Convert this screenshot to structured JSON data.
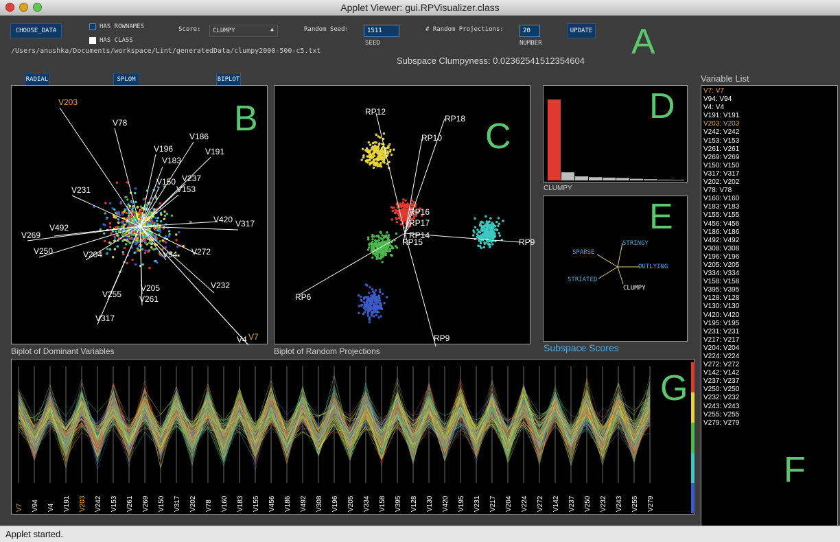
{
  "window": {
    "title": "Applet Viewer: gui.RPVisualizer.class",
    "status": "Applet started."
  },
  "toolbar": {
    "choose_data": "CHOOSE_DATA",
    "has_rownames": "HAS ROWNAMES",
    "has_class": "HAS CLASS",
    "score_label": "Score:",
    "score_value": "CLUMPY",
    "random_seed_label": "Random Seed:",
    "seed_value": "1511",
    "seed_caption": "SEED",
    "projections_label": "# Random Projections:",
    "number_value": "20",
    "number_caption": "NUMBER",
    "update": "UPDATE",
    "file_path": "/Users/anushka/Documents/workspace/Lint/generatedData/clumpy2000-500-c5.txt"
  },
  "clumpyness": "Subspace Clumpyness: 0.02362541512354604",
  "tabs": {
    "radial": "RADIAL",
    "splom": "SPLOM",
    "biplot": "BIPLOT"
  },
  "region_letters": {
    "a": "A",
    "b": "B",
    "c": "C",
    "d": "D",
    "e": "E",
    "f": "F",
    "g": "G"
  },
  "colors": {
    "yellow": "#e6d23a",
    "red": "#e03a2e",
    "green": "#4bb84b",
    "blue": "#3b5bc8",
    "cyan": "#3cc8c0",
    "orange": "#f0a830",
    "accent_green": "#5cc86e"
  },
  "biplot_dominant": {
    "caption": "Biplot of Dominant Variables",
    "labels": [
      {
        "text": "V203",
        "color": "#f0a830"
      },
      {
        "text": "V78"
      },
      {
        "text": "V186"
      },
      {
        "text": "V191"
      },
      {
        "text": "V196"
      },
      {
        "text": "V183"
      },
      {
        "text": "V237"
      },
      {
        "text": "V150"
      },
      {
        "text": "V153"
      },
      {
        "text": "V231"
      },
      {
        "text": "V420"
      },
      {
        "text": "V317"
      },
      {
        "text": "V269"
      },
      {
        "text": "V492"
      },
      {
        "text": "V250"
      },
      {
        "text": "V204"
      },
      {
        "text": "V94"
      },
      {
        "text": "V272"
      },
      {
        "text": "V255"
      },
      {
        "text": "V205"
      },
      {
        "text": "V261"
      },
      {
        "text": "V232"
      },
      {
        "text": "V317"
      },
      {
        "text": "V4"
      },
      {
        "text": "V7",
        "color": "#f0a830"
      }
    ]
  },
  "biplot_rp": {
    "caption": "Biplot of Random Projections",
    "labels": [
      "RP12",
      "RP18",
      "RP10",
      "RP16",
      "RP17",
      "RP14",
      "RP15",
      "RP6",
      "RP9",
      "RP9"
    ]
  },
  "scores_panel": {
    "selected_label": "CLUMPY",
    "caption": "Subspace Scores",
    "star_labels": [
      "SPARSE",
      "STRINGY",
      "OUTLYING",
      "STRIATED",
      "CLUMPY"
    ],
    "bar_values": [
      1.0,
      0.1,
      0.05,
      0.04,
      0.035,
      0.03,
      0.02,
      0.015,
      0.01,
      0.008
    ]
  },
  "variable_list": {
    "title": "Variable List",
    "items": [
      {
        "text": "V7: V7",
        "highlight": true
      },
      {
        "text": "V94: V94"
      },
      {
        "text": "V4: V4"
      },
      {
        "text": "V191: V191"
      },
      {
        "text": "V203: V203",
        "highlight": true
      },
      {
        "text": "V242: V242"
      },
      {
        "text": "V153: V153"
      },
      {
        "text": "V261: V261"
      },
      {
        "text": "V269: V269"
      },
      {
        "text": "V150: V150"
      },
      {
        "text": "V317: V317"
      },
      {
        "text": "V202: V202"
      },
      {
        "text": "V78: V78"
      },
      {
        "text": "V160: V160"
      },
      {
        "text": "V183: V183"
      },
      {
        "text": "V155: V155"
      },
      {
        "text": "V456: V456"
      },
      {
        "text": "V186: V186"
      },
      {
        "text": "V492: V492"
      },
      {
        "text": "V308: V308"
      },
      {
        "text": "V196: V196"
      },
      {
        "text": "V205: V205"
      },
      {
        "text": "V334: V334"
      },
      {
        "text": "V158: V158"
      },
      {
        "text": "V395: V395"
      },
      {
        "text": "V128: V128"
      },
      {
        "text": "V130: V130"
      },
      {
        "text": "V420: V420"
      },
      {
        "text": "V195: V195"
      },
      {
        "text": "V231: V231"
      },
      {
        "text": "V217: V217"
      },
      {
        "text": "V204: V204"
      },
      {
        "text": "V224: V224"
      },
      {
        "text": "V272: V272"
      },
      {
        "text": "V142: V142"
      },
      {
        "text": "V237: V237"
      },
      {
        "text": "V250: V250"
      },
      {
        "text": "V232: V232"
      },
      {
        "text": "V243: V243"
      },
      {
        "text": "V255: V255"
      },
      {
        "text": "V279: V279"
      }
    ]
  },
  "parallel_coords": {
    "axes": [
      {
        "text": "V7",
        "color": "#f0a830"
      },
      {
        "text": "V94"
      },
      {
        "text": "V4"
      },
      {
        "text": "V191"
      },
      {
        "text": "V203",
        "color": "#f0a830"
      },
      {
        "text": "V242"
      },
      {
        "text": "V153"
      },
      {
        "text": "V261"
      },
      {
        "text": "V269"
      },
      {
        "text": "V150"
      },
      {
        "text": "V317"
      },
      {
        "text": "V202"
      },
      {
        "text": "V78"
      },
      {
        "text": "V160"
      },
      {
        "text": "V183"
      },
      {
        "text": "V155"
      },
      {
        "text": "V456"
      },
      {
        "text": "V186"
      },
      {
        "text": "V492"
      },
      {
        "text": "V308"
      },
      {
        "text": "V196"
      },
      {
        "text": "V205"
      },
      {
        "text": "V334"
      },
      {
        "text": "V158"
      },
      {
        "text": "V395"
      },
      {
        "text": "V128"
      },
      {
        "text": "V130"
      },
      {
        "text": "V420"
      },
      {
        "text": "V195"
      },
      {
        "text": "V231"
      },
      {
        "text": "V217"
      },
      {
        "text": "V204"
      },
      {
        "text": "V224"
      },
      {
        "text": "V272"
      },
      {
        "text": "V142"
      },
      {
        "text": "V237"
      },
      {
        "text": "V250"
      },
      {
        "text": "V232"
      },
      {
        "text": "V243"
      },
      {
        "text": "V255"
      },
      {
        "text": "V279"
      }
    ]
  }
}
